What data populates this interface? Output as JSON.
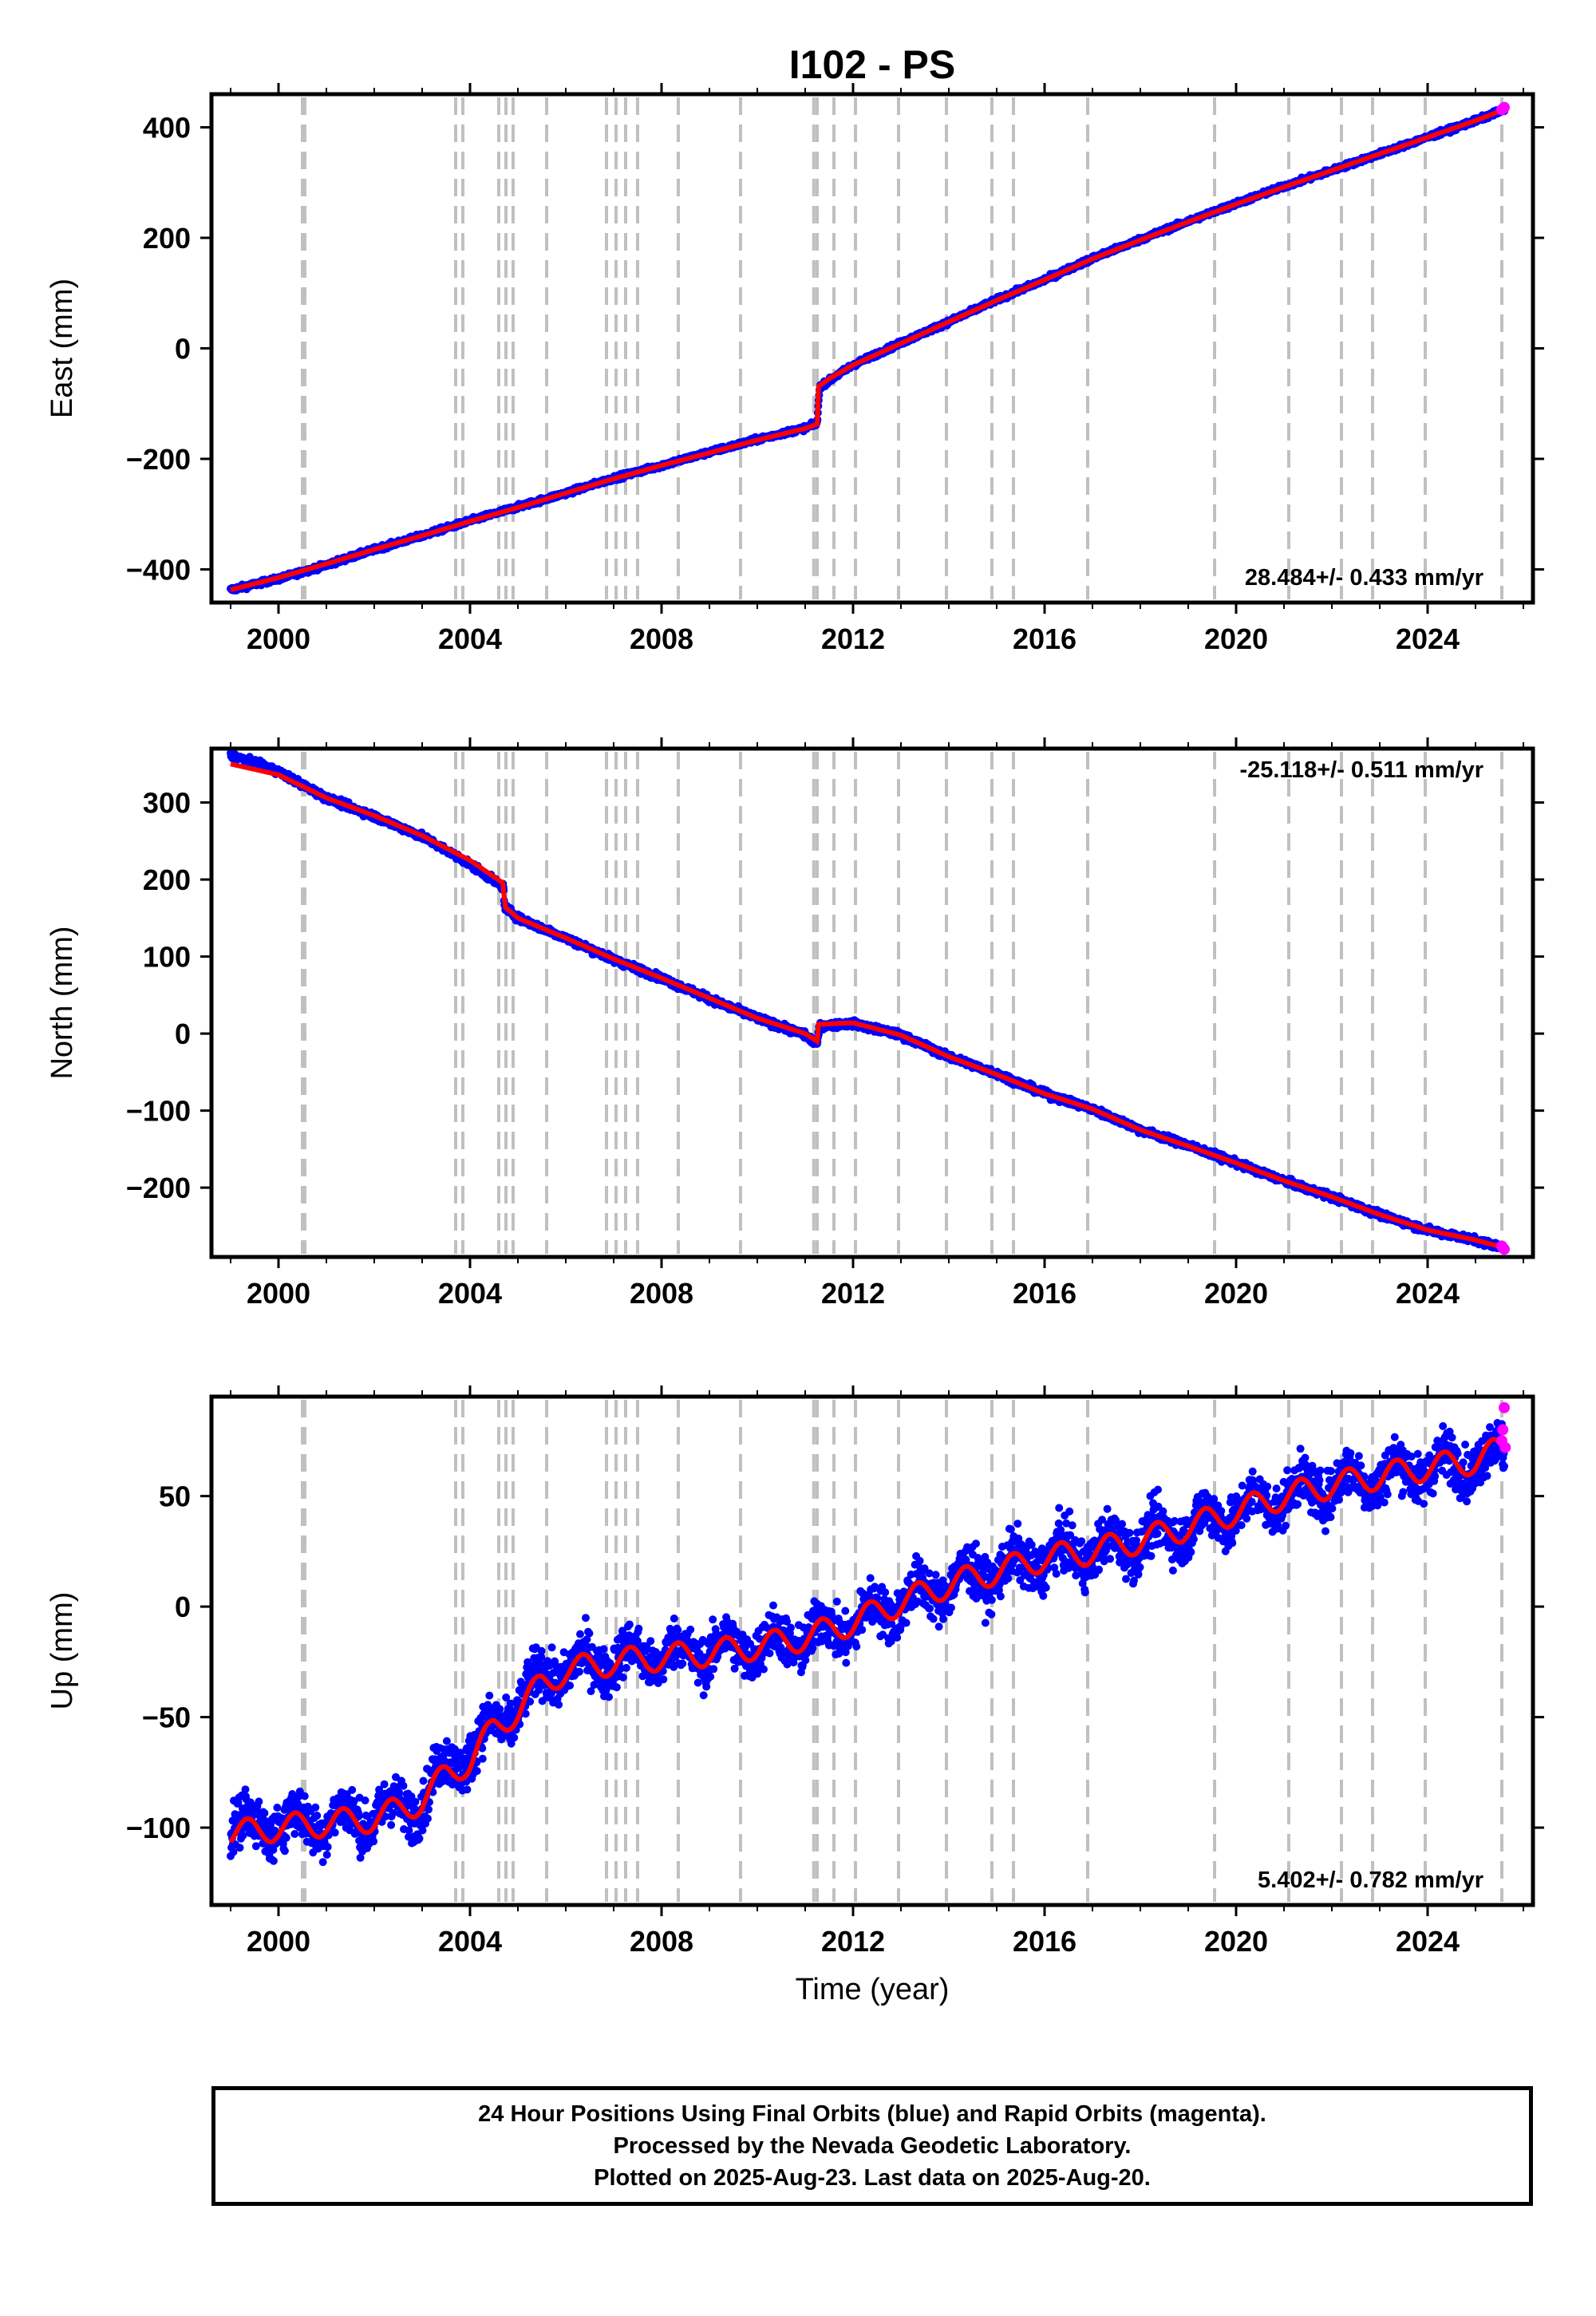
{
  "title": "I102 - PS",
  "chart_data": [
    {
      "type": "scatter",
      "panel": "east",
      "ylabel": "East (mm)",
      "xlabel": "",
      "xlim": [
        1998.6,
        2026.2
      ],
      "ylim": [
        -460,
        460
      ],
      "xticks": [
        2000,
        2004,
        2008,
        2012,
        2016,
        2020,
        2024
      ],
      "yticks": [
        -400,
        -200,
        0,
        200,
        400
      ],
      "rate_label": "28.484+/- 0.433 mm/yr",
      "rate_label_position": "bottom-right",
      "series": [
        {
          "name": "Final Orbits",
          "color": "#0000ff",
          "points": [
            [
              1999.0,
              -437
            ],
            [
              2000.0,
              -417
            ],
            [
              2001.0,
              -392
            ],
            [
              2002.0,
              -364
            ],
            [
              2003.0,
              -339
            ],
            [
              2004.0,
              -312
            ],
            [
              2005.0,
              -287
            ],
            [
              2006.0,
              -262
            ],
            [
              2007.0,
              -235
            ],
            [
              2008.0,
              -212
            ],
            [
              2009.0,
              -188
            ],
            [
              2010.0,
              -165
            ],
            [
              2011.0,
              -144
            ],
            [
              2011.25,
              -136
            ],
            [
              2011.3,
              -70
            ],
            [
              2012.0,
              -30
            ],
            [
              2013.0,
              10
            ],
            [
              2014.0,
              48
            ],
            [
              2015.0,
              88
            ],
            [
              2016.0,
              124
            ],
            [
              2017.0,
              163
            ],
            [
              2018.0,
              197
            ],
            [
              2019.0,
              230
            ],
            [
              2020.0,
              262
            ],
            [
              2021.0,
              293
            ],
            [
              2022.0,
              322
            ],
            [
              2023.0,
              352
            ],
            [
              2024.0,
              382
            ],
            [
              2025.0,
              412
            ],
            [
              2025.6,
              432
            ]
          ]
        },
        {
          "name": "Rapid Orbits",
          "color": "#ff00ff",
          "points": [
            [
              2025.55,
              432
            ],
            [
              2025.6,
              436
            ]
          ]
        }
      ],
      "model": {
        "color": "#ff0000",
        "points": [
          [
            1999.0,
            -437
          ],
          [
            2000.0,
            -415
          ],
          [
            2001.0,
            -390
          ],
          [
            2002.0,
            -364
          ],
          [
            2003.0,
            -339
          ],
          [
            2004.0,
            -313
          ],
          [
            2005.0,
            -288
          ],
          [
            2006.0,
            -262
          ],
          [
            2007.0,
            -236
          ],
          [
            2008.0,
            -212
          ],
          [
            2009.0,
            -189
          ],
          [
            2010.0,
            -166
          ],
          [
            2011.0,
            -145
          ],
          [
            2011.25,
            -137
          ],
          [
            2011.26,
            -70
          ],
          [
            2011.5,
            -55
          ],
          [
            2012.0,
            -30
          ],
          [
            2013.0,
            9
          ],
          [
            2014.0,
            48
          ],
          [
            2015.0,
            87
          ],
          [
            2016.0,
            124
          ],
          [
            2017.0,
            162
          ],
          [
            2018.0,
            196
          ],
          [
            2019.0,
            229
          ],
          [
            2020.0,
            261
          ],
          [
            2021.0,
            292
          ],
          [
            2022.0,
            322
          ],
          [
            2023.0,
            352
          ],
          [
            2024.0,
            382
          ],
          [
            2025.0,
            412
          ],
          [
            2025.6,
            432
          ]
        ]
      },
      "event_lines": [
        2000.5,
        2000.55,
        2003.7,
        2003.85,
        2004.6,
        2004.75,
        2004.9,
        2005.6,
        2006.85,
        2007.05,
        2007.25,
        2007.5,
        2008.35,
        2009.65,
        2011.18,
        2011.25,
        2011.6,
        2012.05,
        2012.95,
        2013.95,
        2014.9,
        2015.35,
        2016.9,
        2019.55,
        2021.1,
        2022.2,
        2022.85,
        2023.95,
        2025.55
      ]
    },
    {
      "type": "scatter",
      "panel": "north",
      "ylabel": "North (mm)",
      "xlabel": "",
      "xlim": [
        1998.6,
        2026.2
      ],
      "ylim": [
        -290,
        370
      ],
      "xticks": [
        2000,
        2004,
        2008,
        2012,
        2016,
        2020,
        2024
      ],
      "yticks": [
        -200,
        -100,
        0,
        100,
        200,
        300
      ],
      "rate_label": "-25.118+/- 0.511 mm/yr",
      "rate_label_position": "top-right",
      "series": [
        {
          "name": "Final Orbits",
          "color": "#0000ff",
          "points": [
            [
              1999.0,
              362
            ],
            [
              2000.0,
              340
            ],
            [
              2001.0,
              306
            ],
            [
              2002.0,
              282
            ],
            [
              2003.0,
              256
            ],
            [
              2004.0,
              220
            ],
            [
              2004.7,
              190
            ],
            [
              2004.72,
              165
            ],
            [
              2005.0,
              150
            ],
            [
              2006.0,
              124
            ],
            [
              2007.0,
              96
            ],
            [
              2008.0,
              72
            ],
            [
              2009.0,
              45
            ],
            [
              2010.0,
              20
            ],
            [
              2011.0,
              -2
            ],
            [
              2011.25,
              -14
            ],
            [
              2011.3,
              10
            ],
            [
              2012.0,
              13
            ],
            [
              2013.0,
              -2
            ],
            [
              2014.0,
              -30
            ],
            [
              2015.0,
              -52
            ],
            [
              2016.0,
              -78
            ],
            [
              2017.0,
              -98
            ],
            [
              2018.0,
              -125
            ],
            [
              2019.0,
              -145
            ],
            [
              2020.0,
              -168
            ],
            [
              2021.0,
              -191
            ],
            [
              2022.0,
              -212
            ],
            [
              2023.0,
              -235
            ],
            [
              2024.0,
              -255
            ],
            [
              2025.0,
              -268
            ],
            [
              2025.6,
              -278
            ]
          ]
        },
        {
          "name": "Rapid Orbits",
          "color": "#ff00ff",
          "points": [
            [
              2025.55,
              -276
            ],
            [
              2025.6,
              -280
            ]
          ]
        }
      ],
      "model": {
        "color": "#ff0000",
        "points": [
          [
            1999.0,
            350
          ],
          [
            2000.0,
            336
          ],
          [
            2001.0,
            306
          ],
          [
            2002.0,
            283
          ],
          [
            2003.0,
            257
          ],
          [
            2004.0,
            225
          ],
          [
            2004.7,
            195
          ],
          [
            2004.72,
            165
          ],
          [
            2005.0,
            150
          ],
          [
            2006.0,
            124
          ],
          [
            2007.0,
            97
          ],
          [
            2008.0,
            72
          ],
          [
            2009.0,
            46
          ],
          [
            2010.0,
            20
          ],
          [
            2011.0,
            0
          ],
          [
            2011.25,
            -10
          ],
          [
            2011.26,
            12
          ],
          [
            2012.0,
            14
          ],
          [
            2013.0,
            -2
          ],
          [
            2014.0,
            -30
          ],
          [
            2015.0,
            -53
          ],
          [
            2016.0,
            -78
          ],
          [
            2017.0,
            -98
          ],
          [
            2018.0,
            -125
          ],
          [
            2019.0,
            -146
          ],
          [
            2020.0,
            -168
          ],
          [
            2021.0,
            -191
          ],
          [
            2022.0,
            -212
          ],
          [
            2023.0,
            -235
          ],
          [
            2024.0,
            -255
          ],
          [
            2025.0,
            -268
          ],
          [
            2025.6,
            -278
          ]
        ]
      },
      "event_lines": [
        2000.5,
        2000.55,
        2003.7,
        2003.85,
        2004.6,
        2004.75,
        2004.9,
        2005.6,
        2006.85,
        2007.05,
        2007.25,
        2007.5,
        2008.35,
        2009.65,
        2011.18,
        2011.25,
        2011.6,
        2012.05,
        2012.95,
        2013.95,
        2014.9,
        2015.35,
        2016.9,
        2019.55,
        2021.1,
        2022.2,
        2022.85,
        2023.95,
        2025.55
      ]
    },
    {
      "type": "scatter",
      "panel": "up",
      "ylabel": "Up (mm)",
      "xlabel": "Time (year)",
      "xlim": [
        1998.6,
        2026.2
      ],
      "ylim": [
        -135,
        95
      ],
      "xticks": [
        2000,
        2004,
        2008,
        2012,
        2016,
        2020,
        2024
      ],
      "yticks": [
        -100,
        -50,
        0,
        50
      ],
      "rate_label": "5.402+/- 0.782 mm/yr",
      "rate_label_position": "bottom-right",
      "seasonal_amplitude_mm": 6,
      "scatter_amplitude_mm": 8,
      "series": [
        {
          "name": "Final Orbits",
          "color": "#0000ff",
          "points": [
            [
              1999.0,
              -100
            ],
            [
              2000.0,
              -98
            ],
            [
              2001.0,
              -97
            ],
            [
              2002.0,
              -95
            ],
            [
              2003.0,
              -88
            ],
            [
              2003.5,
              -72
            ],
            [
              2004.0,
              -66
            ],
            [
              2004.5,
              -55
            ],
            [
              2005.0,
              -45
            ],
            [
              2005.5,
              -32
            ],
            [
              2006.0,
              -28
            ],
            [
              2007.0,
              -24
            ],
            [
              2008.0,
              -22
            ],
            [
              2009.0,
              -20
            ],
            [
              2010.0,
              -18
            ],
            [
              2011.0,
              -14
            ],
            [
              2012.0,
              -8
            ],
            [
              2013.0,
              2
            ],
            [
              2014.0,
              10
            ],
            [
              2015.0,
              16
            ],
            [
              2016.0,
              22
            ],
            [
              2017.0,
              25
            ],
            [
              2018.0,
              30
            ],
            [
              2019.0,
              36
            ],
            [
              2020.0,
              43
            ],
            [
              2021.0,
              50
            ],
            [
              2022.0,
              55
            ],
            [
              2023.0,
              59
            ],
            [
              2024.0,
              63
            ],
            [
              2025.0,
              66
            ],
            [
              2025.6,
              70
            ]
          ]
        },
        {
          "name": "Rapid Orbits",
          "color": "#ff00ff",
          "points": [
            [
              2025.55,
              75
            ],
            [
              2025.57,
              80
            ],
            [
              2025.6,
              90
            ],
            [
              2025.62,
              72
            ]
          ]
        }
      ],
      "model": {
        "color": "#ff0000",
        "points": [
          [
            1999.0,
            -103
          ],
          [
            2000.0,
            -100
          ],
          [
            2001.0,
            -98
          ],
          [
            2002.0,
            -96
          ],
          [
            2003.0,
            -88
          ],
          [
            2003.5,
            -76
          ],
          [
            2004.0,
            -70
          ],
          [
            2004.5,
            -55
          ],
          [
            2005.0,
            -47
          ],
          [
            2005.5,
            -35
          ],
          [
            2006.0,
            -29
          ],
          [
            2007.0,
            -25
          ],
          [
            2008.0,
            -23
          ],
          [
            2009.0,
            -21
          ],
          [
            2010.0,
            -18
          ],
          [
            2011.0,
            -14
          ],
          [
            2012.0,
            -7
          ],
          [
            2013.0,
            2
          ],
          [
            2014.0,
            10
          ],
          [
            2015.0,
            16
          ],
          [
            2016.0,
            22
          ],
          [
            2017.0,
            25
          ],
          [
            2018.0,
            30
          ],
          [
            2019.0,
            36
          ],
          [
            2020.0,
            43
          ],
          [
            2021.0,
            50
          ],
          [
            2022.0,
            55
          ],
          [
            2023.0,
            59
          ],
          [
            2024.0,
            63
          ],
          [
            2025.0,
            66
          ],
          [
            2025.6,
            72
          ]
        ]
      },
      "event_lines": [
        2000.5,
        2000.55,
        2003.7,
        2003.85,
        2004.6,
        2004.75,
        2004.9,
        2005.6,
        2006.85,
        2007.05,
        2007.25,
        2007.5,
        2008.35,
        2009.65,
        2011.18,
        2011.25,
        2011.6,
        2012.05,
        2012.95,
        2013.95,
        2014.9,
        2015.35,
        2016.9,
        2019.55,
        2021.1,
        2022.2,
        2022.85,
        2023.95,
        2025.55
      ]
    }
  ],
  "footer": {
    "line1": "24 Hour Positions Using Final Orbits (blue) and Rapid Orbits (magenta).",
    "line2": "Processed by the Nevada Geodetic Laboratory.",
    "line3": "Plotted on 2025-Aug-23. Last data on 2025-Aug-20."
  }
}
